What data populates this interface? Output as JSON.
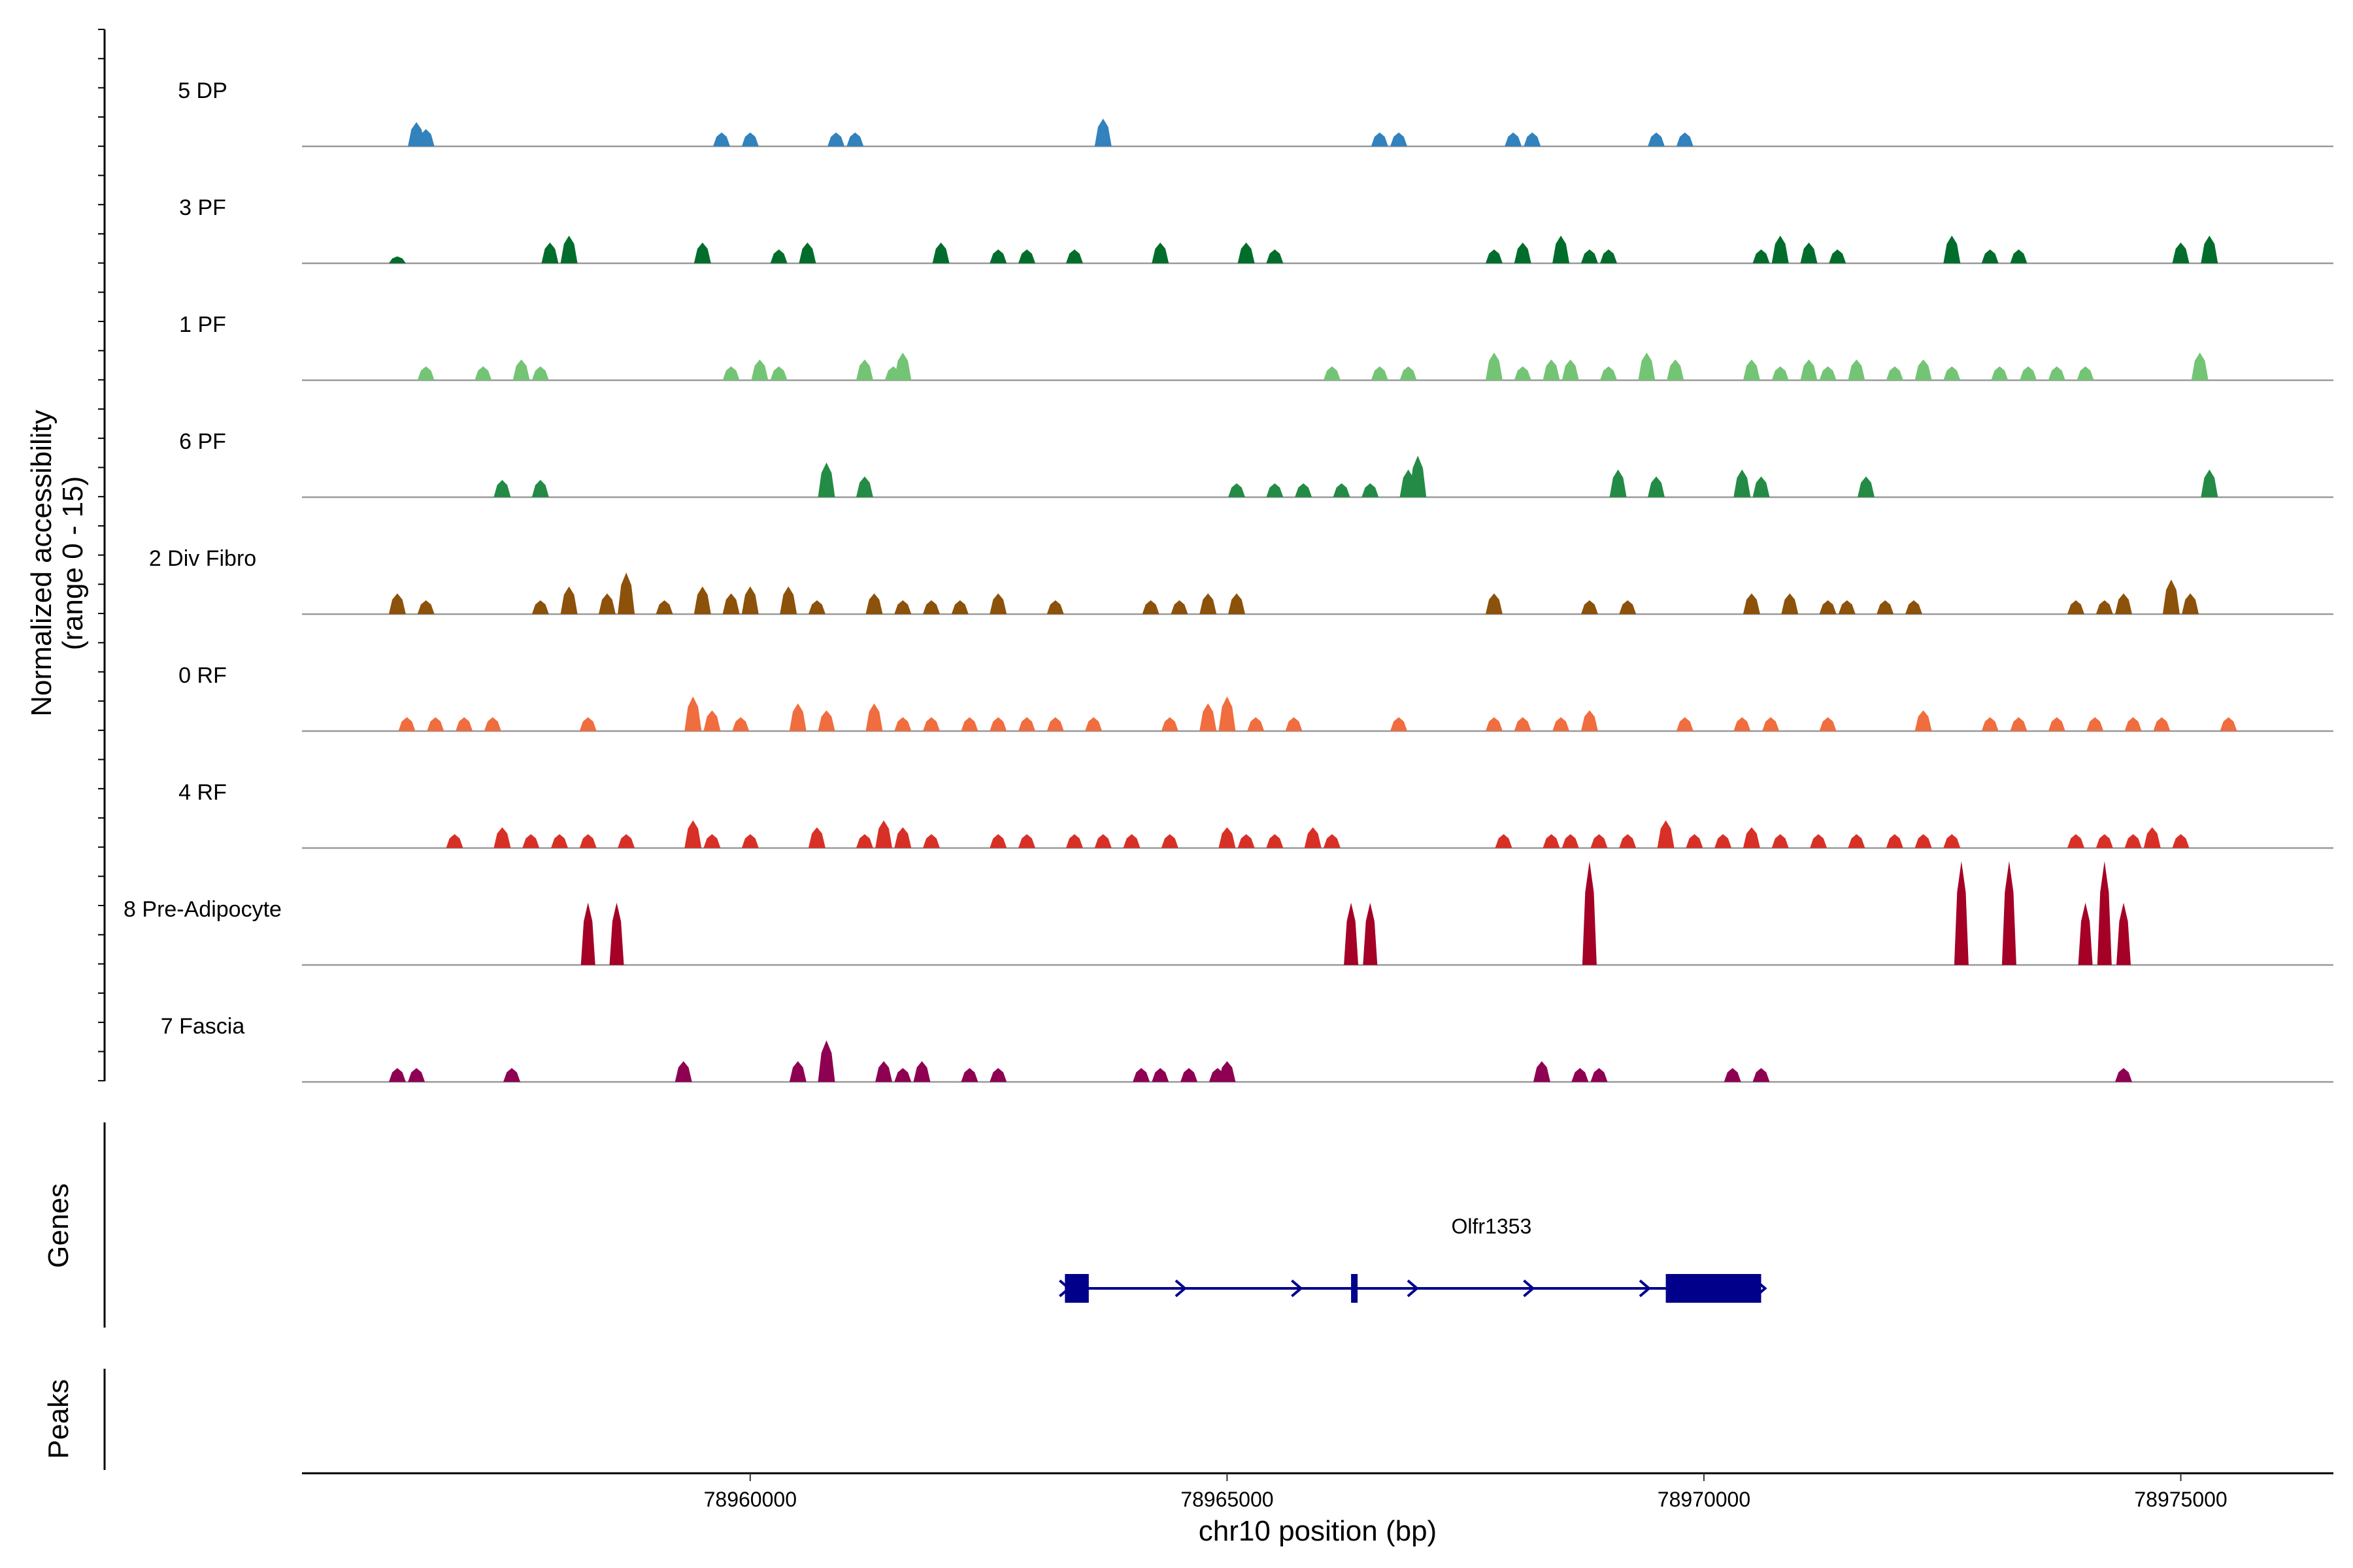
{
  "chart_data": {
    "type": "area",
    "title": "",
    "region": {
      "start": 78955300,
      "end": 78976600
    },
    "ylabel_line1": "Normalized accessibility",
    "ylabel_line2": "(range 0 - 15)",
    "xlabel": "chr10 position (bp)",
    "xticks": [
      78960000,
      78965000,
      78970000,
      78975000
    ],
    "xtick_labels": [
      "78960000",
      "78965000",
      "78970000",
      "78975000"
    ],
    "genes_label": "Genes",
    "peaks_label": "Peaks",
    "tracks": [
      {
        "name": "5 DP",
        "color": "#3182bd",
        "peaks": [
          [
            78956500,
            3.5
          ],
          [
            78956600,
            2.5
          ],
          [
            78959700,
            2
          ],
          [
            78960000,
            2
          ],
          [
            78960900,
            2
          ],
          [
            78961100,
            2
          ],
          [
            78963700,
            4
          ],
          [
            78966600,
            2
          ],
          [
            78966800,
            2
          ],
          [
            78968000,
            2
          ],
          [
            78968200,
            2
          ],
          [
            78969500,
            2
          ],
          [
            78969800,
            2
          ]
        ]
      },
      {
        "name": "3 PF",
        "color": "#006d2c",
        "peaks": [
          [
            78956300,
            1
          ],
          [
            78957900,
            3
          ],
          [
            78958100,
            4
          ],
          [
            78959500,
            3
          ],
          [
            78960300,
            2
          ],
          [
            78960600,
            3
          ],
          [
            78962000,
            3
          ],
          [
            78962600,
            2
          ],
          [
            78962900,
            2
          ],
          [
            78963400,
            2
          ],
          [
            78964300,
            3
          ],
          [
            78965200,
            3
          ],
          [
            78965500,
            2
          ],
          [
            78967800,
            2
          ],
          [
            78968100,
            3
          ],
          [
            78968500,
            4
          ],
          [
            78968800,
            2
          ],
          [
            78969000,
            2
          ],
          [
            78970600,
            2
          ],
          [
            78970800,
            4
          ],
          [
            78971100,
            3
          ],
          [
            78971400,
            2
          ],
          [
            78972600,
            4
          ],
          [
            78973000,
            2
          ],
          [
            78973300,
            2
          ],
          [
            78975000,
            3
          ],
          [
            78975300,
            4
          ]
        ]
      },
      {
        "name": "1 PF",
        "color": "#74c476",
        "peaks": [
          [
            78956600,
            2
          ],
          [
            78957200,
            2
          ],
          [
            78957600,
            3
          ],
          [
            78957800,
            2
          ],
          [
            78959800,
            2
          ],
          [
            78960100,
            3
          ],
          [
            78960300,
            2
          ],
          [
            78961200,
            3
          ],
          [
            78961600,
            4
          ],
          [
            78961500,
            2
          ],
          [
            78966100,
            2
          ],
          [
            78966600,
            2
          ],
          [
            78966900,
            2
          ],
          [
            78967800,
            4
          ],
          [
            78968100,
            2
          ],
          [
            78968400,
            3
          ],
          [
            78968600,
            3
          ],
          [
            78969000,
            2
          ],
          [
            78969400,
            4
          ],
          [
            78969700,
            3
          ],
          [
            78970500,
            3
          ],
          [
            78970800,
            2
          ],
          [
            78971100,
            3
          ],
          [
            78971300,
            2
          ],
          [
            78971600,
            3
          ],
          [
            78972000,
            2
          ],
          [
            78972300,
            3
          ],
          [
            78972600,
            2
          ],
          [
            78973100,
            2
          ],
          [
            78973400,
            2
          ],
          [
            78973700,
            2
          ],
          [
            78974000,
            2
          ],
          [
            78975200,
            4
          ]
        ]
      },
      {
        "name": "6 PF",
        "color": "#238b45",
        "peaks": [
          [
            78957400,
            2.5
          ],
          [
            78957800,
            2.5
          ],
          [
            78960800,
            5
          ],
          [
            78961200,
            3
          ],
          [
            78965100,
            2
          ],
          [
            78965500,
            2
          ],
          [
            78965800,
            2
          ],
          [
            78966200,
            2
          ],
          [
            78966500,
            2
          ],
          [
            78966900,
            4
          ],
          [
            78967000,
            6
          ],
          [
            78969100,
            4
          ],
          [
            78969500,
            3
          ],
          [
            78970400,
            4
          ],
          [
            78970600,
            3
          ],
          [
            78971700,
            3
          ],
          [
            78975300,
            4
          ]
        ]
      },
      {
        "name": "2 Div Fibro",
        "color": "#8c510a",
        "peaks": [
          [
            78956300,
            3
          ],
          [
            78956600,
            2
          ],
          [
            78957800,
            2
          ],
          [
            78958100,
            4
          ],
          [
            78958500,
            3
          ],
          [
            78958700,
            6
          ],
          [
            78959100,
            2
          ],
          [
            78959500,
            4
          ],
          [
            78959800,
            3
          ],
          [
            78960000,
            4
          ],
          [
            78960400,
            4
          ],
          [
            78960700,
            2
          ],
          [
            78961300,
            3
          ],
          [
            78961600,
            2
          ],
          [
            78961900,
            2
          ],
          [
            78962200,
            2
          ],
          [
            78962600,
            3
          ],
          [
            78963200,
            2
          ],
          [
            78964200,
            2
          ],
          [
            78964500,
            2
          ],
          [
            78964800,
            3
          ],
          [
            78965100,
            3
          ],
          [
            78967800,
            3
          ],
          [
            78968800,
            2
          ],
          [
            78969200,
            2
          ],
          [
            78970500,
            3
          ],
          [
            78970900,
            3
          ],
          [
            78971300,
            2
          ],
          [
            78971500,
            2
          ],
          [
            78971900,
            2
          ],
          [
            78972200,
            2
          ],
          [
            78973900,
            2
          ],
          [
            78974200,
            2
          ],
          [
            78974400,
            3
          ],
          [
            78974900,
            5
          ],
          [
            78975100,
            3
          ]
        ]
      },
      {
        "name": "0 RF",
        "color": "#ef6d3f",
        "peaks": [
          [
            78956400,
            2
          ],
          [
            78956700,
            2
          ],
          [
            78957000,
            2
          ],
          [
            78957300,
            2
          ],
          [
            78958300,
            2
          ],
          [
            78959400,
            5
          ],
          [
            78959600,
            3
          ],
          [
            78959900,
            2
          ],
          [
            78960500,
            4
          ],
          [
            78960800,
            3
          ],
          [
            78961300,
            4
          ],
          [
            78961600,
            2
          ],
          [
            78961900,
            2
          ],
          [
            78962300,
            2
          ],
          [
            78962600,
            2
          ],
          [
            78962900,
            2
          ],
          [
            78963200,
            2
          ],
          [
            78963600,
            2
          ],
          [
            78964400,
            2
          ],
          [
            78964800,
            4
          ],
          [
            78965000,
            5
          ],
          [
            78965300,
            2
          ],
          [
            78965700,
            2
          ],
          [
            78966800,
            2
          ],
          [
            78967800,
            2
          ],
          [
            78968100,
            2
          ],
          [
            78968500,
            2
          ],
          [
            78968800,
            3
          ],
          [
            78969800,
            2
          ],
          [
            78970400,
            2
          ],
          [
            78970700,
            2
          ],
          [
            78971300,
            2
          ],
          [
            78972300,
            3
          ],
          [
            78973000,
            2
          ],
          [
            78973300,
            2
          ],
          [
            78973700,
            2
          ],
          [
            78974100,
            2
          ],
          [
            78974500,
            2
          ],
          [
            78974800,
            2
          ],
          [
            78975500,
            2
          ]
        ]
      },
      {
        "name": "4 RF",
        "color": "#d73027",
        "peaks": [
          [
            78956900,
            2
          ],
          [
            78957400,
            3
          ],
          [
            78957700,
            2
          ],
          [
            78958000,
            2
          ],
          [
            78958300,
            2
          ],
          [
            78958700,
            2
          ],
          [
            78959400,
            4
          ],
          [
            78959600,
            2
          ],
          [
            78960000,
            2
          ],
          [
            78960700,
            3
          ],
          [
            78961200,
            2
          ],
          [
            78961400,
            4
          ],
          [
            78961600,
            3
          ],
          [
            78961900,
            2
          ],
          [
            78962600,
            2
          ],
          [
            78962900,
            2
          ],
          [
            78963400,
            2
          ],
          [
            78963700,
            2
          ],
          [
            78964000,
            2
          ],
          [
            78964400,
            2
          ],
          [
            78965000,
            3
          ],
          [
            78965200,
            2
          ],
          [
            78965500,
            2
          ],
          [
            78965900,
            3
          ],
          [
            78966100,
            2
          ],
          [
            78967900,
            2
          ],
          [
            78968400,
            2
          ],
          [
            78968600,
            2
          ],
          [
            78968900,
            2
          ],
          [
            78969200,
            2
          ],
          [
            78969600,
            4
          ],
          [
            78969900,
            2
          ],
          [
            78970200,
            2
          ],
          [
            78970500,
            3
          ],
          [
            78970800,
            2
          ],
          [
            78971200,
            2
          ],
          [
            78971600,
            2
          ],
          [
            78972000,
            2
          ],
          [
            78972300,
            2
          ],
          [
            78972600,
            2
          ],
          [
            78973900,
            2
          ],
          [
            78974200,
            2
          ],
          [
            78974500,
            2
          ],
          [
            78974700,
            3
          ],
          [
            78975000,
            2
          ]
        ]
      },
      {
        "name": "8 Pre-Adipocyte",
        "color": "#a50026",
        "peaks": [
          [
            78958300,
            9
          ],
          [
            78958600,
            9
          ],
          [
            78966300,
            9
          ],
          [
            78966500,
            9
          ],
          [
            78968800,
            15
          ],
          [
            78972700,
            15
          ],
          [
            78973200,
            15
          ],
          [
            78974000,
            9
          ],
          [
            78974200,
            15
          ],
          [
            78974400,
            9
          ]
        ]
      },
      {
        "name": "7 Fascia",
        "color": "#8e0152",
        "peaks": [
          [
            78956300,
            2
          ],
          [
            78956500,
            2
          ],
          [
            78957500,
            2
          ],
          [
            78959300,
            3
          ],
          [
            78960500,
            3
          ],
          [
            78960800,
            6
          ],
          [
            78961400,
            3
          ],
          [
            78961600,
            2
          ],
          [
            78961800,
            3
          ],
          [
            78962300,
            2
          ],
          [
            78962600,
            2
          ],
          [
            78964100,
            2
          ],
          [
            78964300,
            2
          ],
          [
            78964600,
            2
          ],
          [
            78964900,
            2
          ],
          [
            78965000,
            3
          ],
          [
            78968300,
            3
          ],
          [
            78968700,
            2
          ],
          [
            78968900,
            2
          ],
          [
            78970300,
            2
          ],
          [
            78970600,
            2
          ],
          [
            78974400,
            2
          ]
        ]
      }
    ],
    "gene": {
      "name": "Olfr1353",
      "start": 78963300,
      "end": 78970600,
      "strand": "+",
      "exons": [
        [
          78963300,
          78963550
        ],
        [
          78966300,
          78966360
        ],
        [
          78969600,
          78970600
        ]
      ]
    }
  }
}
